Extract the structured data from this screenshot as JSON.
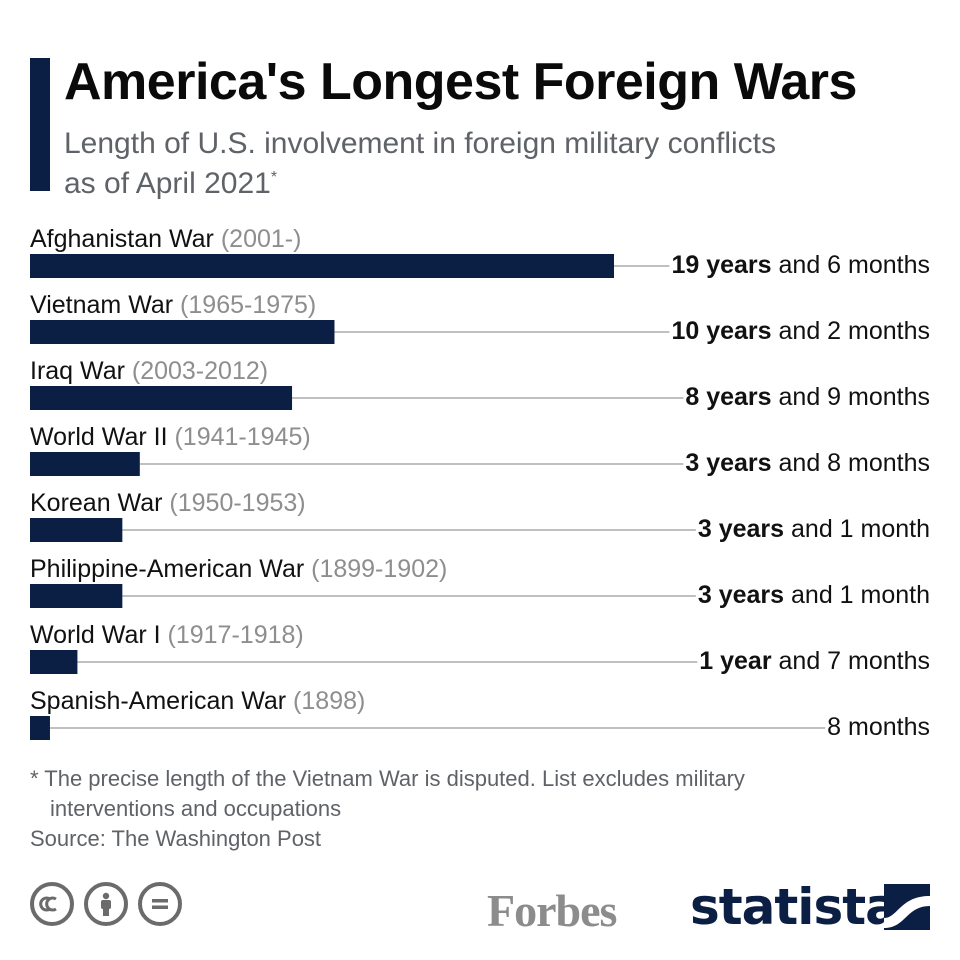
{
  "header": {
    "title": "America's Longest Foreign Wars",
    "subtitle": "Length of U.S. involvement in foreign military conflicts as of April 2021",
    "subtitle_marker": "*"
  },
  "chart_data": {
    "type": "bar",
    "orientation": "horizontal",
    "unit": "months",
    "categories": [
      "Afghanistan War",
      "Vietnam War",
      "Iraq War",
      "World War II",
      "Korean War",
      "Philippine-American War",
      "World War I",
      "Spanish-American War"
    ],
    "years": [
      "(2001-)",
      "(1965-1975)",
      "(2003-2012)",
      "(1941-1945)",
      "(1950-1953)",
      "(1899-1902)",
      "(1917-1918)",
      "(1898)"
    ],
    "values": [
      234,
      122,
      105,
      44,
      37,
      37,
      19,
      8
    ],
    "value_labels": [
      {
        "bold": "19 years",
        "rest": " and 6 months"
      },
      {
        "bold": "10 years",
        "rest": " and 2 months"
      },
      {
        "bold": "8 years",
        "rest": " and 9 months"
      },
      {
        "bold": "3 years",
        "rest": " and 8 months"
      },
      {
        "bold": "3 years",
        "rest": " and 1 month"
      },
      {
        "bold": "3 years",
        "rest": " and 1 month"
      },
      {
        "bold": "1 year",
        "rest": " and 7 months"
      },
      {
        "bold": "",
        "rest": "8 months"
      }
    ],
    "bar_color": "#0b1f44",
    "grid": false,
    "legend": "none"
  },
  "footer": {
    "note_line1": "* The precise length of the Vietnam War is disputed. List excludes military",
    "note_line2": "interventions and occupations",
    "source": "Source: The Washington Post",
    "license_icons": [
      "cc-icon",
      "attribution-icon",
      "no-derivatives-icon"
    ],
    "partner_logo": "Forbes",
    "brand_logo": "statista"
  }
}
